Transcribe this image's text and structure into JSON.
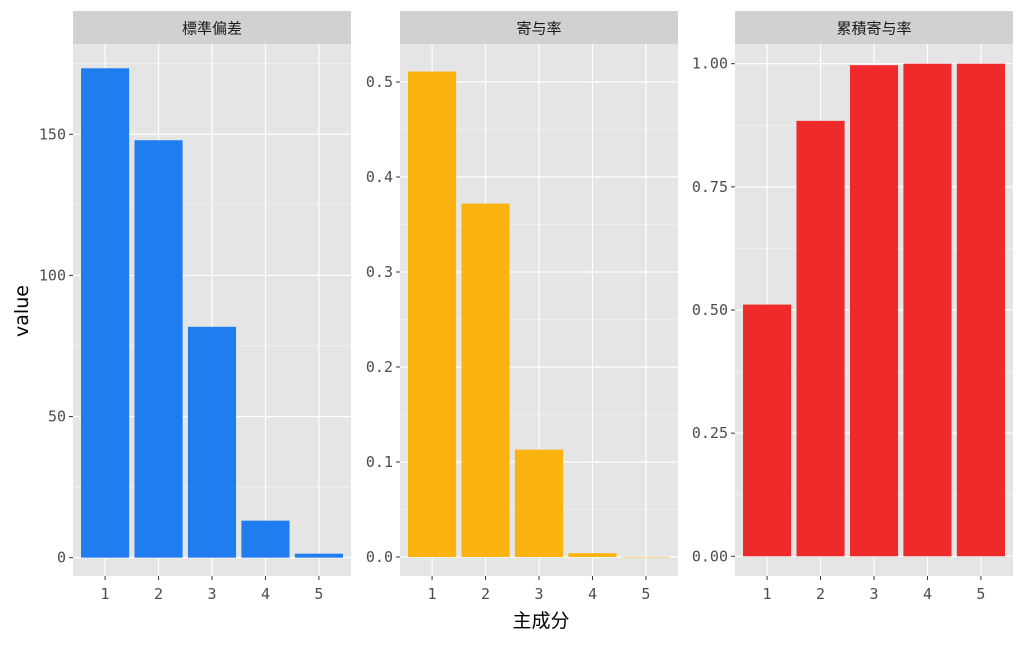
{
  "chart_data": {
    "type": "bar",
    "xlabel": "主成分",
    "ylabel": "value",
    "categories": [
      "1",
      "2",
      "3",
      "4",
      "5"
    ],
    "facets": [
      {
        "title": "標準偏差",
        "color": "#1f7df0",
        "values": [
          173.4,
          147.9,
          81.8,
          13.1,
          1.4
        ],
        "ylim": [
          -6.5,
          182.0
        ],
        "yticks": [
          0,
          50,
          100,
          150
        ],
        "ytick_labels": [
          "0",
          "50",
          "100",
          "150"
        ]
      },
      {
        "title": "寄与率",
        "color": "#fcb30f",
        "values": [
          0.511,
          0.372,
          0.113,
          0.004,
          0.0001
        ],
        "ylim": [
          -0.02,
          0.54
        ],
        "yticks": [
          0.0,
          0.1,
          0.2,
          0.3,
          0.4,
          0.5
        ],
        "ytick_labels": [
          "0.0",
          "0.1",
          "0.2",
          "0.3",
          "0.4",
          "0.5"
        ]
      },
      {
        "title": "累積寄与率",
        "color": "#ef2a2a",
        "values": [
          0.511,
          0.884,
          0.997,
          1.0,
          1.0
        ],
        "ylim": [
          -0.04,
          1.04
        ],
        "yticks": [
          0.0,
          0.25,
          0.5,
          0.75,
          1.0
        ],
        "ytick_labels": [
          "0.00",
          "0.25",
          "0.50",
          "0.75",
          "1.00"
        ]
      }
    ],
    "panel_background": "#e5e5e5",
    "strip_background": "#d1d1d1",
    "grid_color": "#ffffff",
    "grid": true
  }
}
